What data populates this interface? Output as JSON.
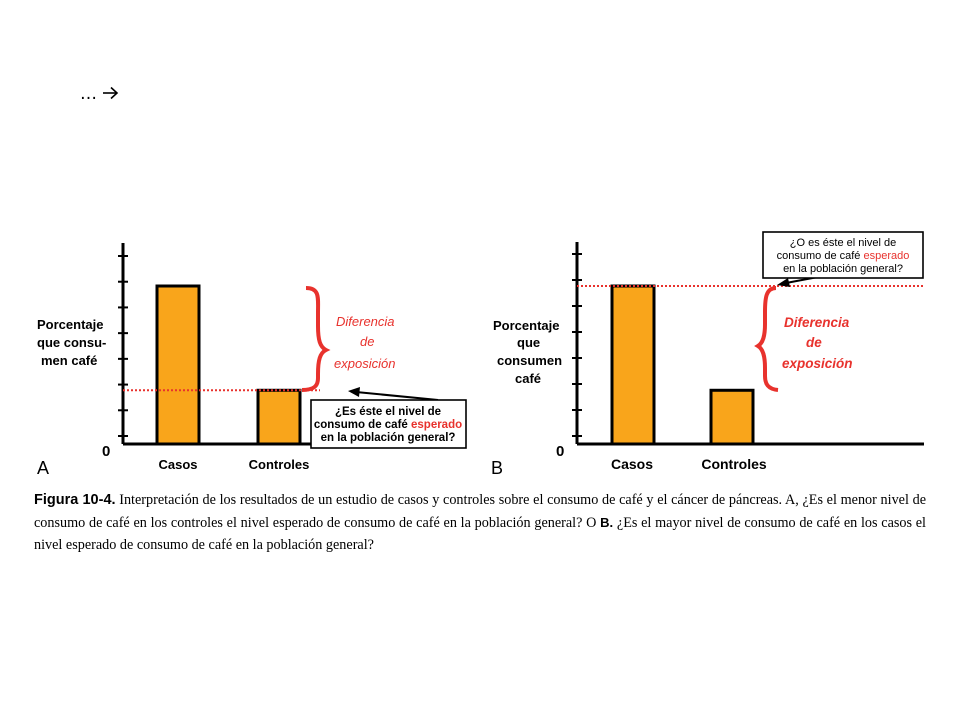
{
  "slide": {
    "nav_text": "…",
    "nav_icon": "arrow-right-icon"
  },
  "colors": {
    "bar": "#f9a51b",
    "red": "#e8322d",
    "axis": "#000000"
  },
  "chart_data": [
    {
      "type": "bar",
      "panel_label": "A",
      "categories": [
        "Casos",
        "Controles"
      ],
      "values": [
        10,
        3.4
      ],
      "ylabel": [
        "Porcentaje",
        "que consu-",
        "men café"
      ],
      "zero_label": "0",
      "reference_level": 3.4,
      "brace_label": [
        "Diferencia",
        "de",
        "exposición"
      ],
      "callout": {
        "line1": "¿Es éste el nivel de",
        "line2_pre": "consumo de café ",
        "line2_red": "esperado",
        "line3": "en la población general?"
      }
    },
    {
      "type": "bar",
      "panel_label": "B",
      "categories": [
        "Casos",
        "Controles"
      ],
      "values": [
        10,
        3.4
      ],
      "ylabel": [
        "Porcentaje",
        "que",
        "consumen",
        "café"
      ],
      "zero_label": "0",
      "reference_level": 10,
      "brace_label": [
        "Diferencia",
        "de",
        "exposición"
      ],
      "callout": {
        "line1": "¿O es éste el nivel de",
        "line2_pre": "consumo de café ",
        "line2_red": "esperado",
        "line3": "en la población general?"
      }
    }
  ],
  "caption": {
    "figure_label": "Figura 10-4.",
    "text_1": " Interpretación de los resultados de un estudio de casos y controles sobre el consumo de café y el cáncer de páncreas. A, ¿Es el menor nivel de consumo de café en los controles el nivel esperado de consumo de café en la población general? O ",
    "b_label": "B.",
    "text_2": " ¿Es el mayor nivel de consumo de café en los casos el nivel esperado de consumo de café en la población general?"
  }
}
